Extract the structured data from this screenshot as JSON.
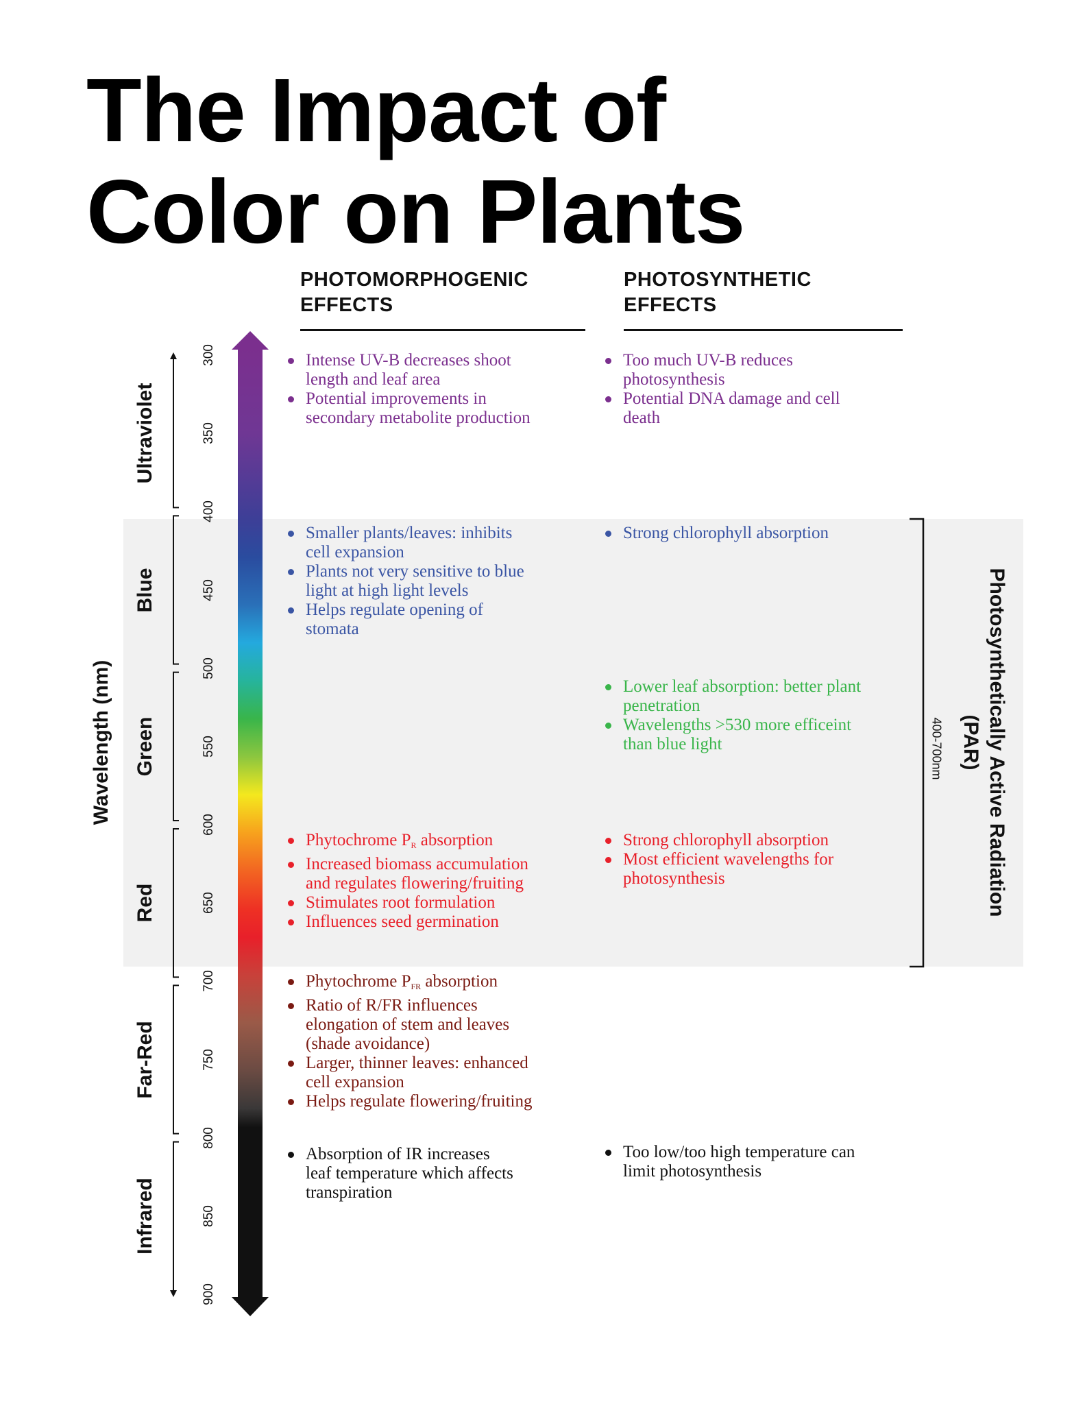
{
  "title": {
    "line1": "The Impact of",
    "line2": "Color on Plants"
  },
  "columns": {
    "photomorphogenic": {
      "line1": "PHOTOMORPHOGENIC",
      "line2": "EFFECTS"
    },
    "photosynthetic": {
      "line1": "PHOTOSYNTHETIC",
      "line2": "EFFECTS"
    }
  },
  "axis": {
    "title": "Wavelength (nm)",
    "range_nm": [
      300,
      900
    ],
    "ticks": [
      "300",
      "350",
      "400",
      "450",
      "500",
      "550",
      "600",
      "650",
      "700",
      "750",
      "800",
      "850",
      "900"
    ]
  },
  "regions": [
    {
      "label": "Ultraviolet",
      "range_nm": [
        300,
        400
      ],
      "color": "#7b2f8e"
    },
    {
      "label": "Blue",
      "range_nm": [
        400,
        500
      ],
      "color": "#3a55a4"
    },
    {
      "label": "Green",
      "range_nm": [
        500,
        600
      ],
      "color": "#39b54a"
    },
    {
      "label": "Red",
      "range_nm": [
        600,
        700
      ],
      "color": "#e8202a"
    },
    {
      "label": "Far-Red",
      "range_nm": [
        700,
        800
      ],
      "color": "#7a1a12"
    },
    {
      "label": "Infrared",
      "range_nm": [
        800,
        900
      ],
      "color": "#111111"
    }
  ],
  "par": {
    "title_line1": "Photosynthetically Active Radiation",
    "title_line2": "(PAR)",
    "range": "400-700nm"
  },
  "effects": {
    "uv_morpho": [
      [
        "Intense UV-B decreases shoot",
        "length and leaf area"
      ],
      [
        "Potential improvements in",
        "secondary metabolite production"
      ]
    ],
    "uv_synth": [
      [
        "Too much UV-B reduces",
        "photosynthesis"
      ],
      [
        "Potential DNA damage and cell",
        "death"
      ]
    ],
    "blue_morpho": [
      [
        "Smaller plants/leaves: inhibits",
        "cell expansion"
      ],
      [
        "Plants not very sensitive to blue",
        "light at high light levels"
      ],
      [
        "Helps regulate opening of",
        "stomata"
      ]
    ],
    "blue_synth": [
      [
        "Strong chlorophyll absorption"
      ]
    ],
    "green_synth": [
      [
        "Lower leaf absorption: better plant",
        "penetration"
      ],
      [
        "Wavelengths >530 more efficeint",
        "than blue light"
      ]
    ],
    "red_morpho_first": {
      "pre": "Phytochrome P",
      "sub": "R",
      "post": " absorption"
    },
    "red_morpho": [
      [
        "Increased biomass accumulation",
        "and regulates flowering/fruiting"
      ],
      [
        "Stimulates root formulation"
      ],
      [
        "Influences seed germination"
      ]
    ],
    "red_synth": [
      [
        "Strong chlorophyll absorption"
      ],
      [
        "Most efficient wavelengths for",
        "photosynthesis"
      ]
    ],
    "farred_morpho_first": {
      "pre": "Phytochrome P",
      "sub": "FR",
      "post": " absorption"
    },
    "farred_morpho": [
      [
        "Ratio of R/FR influences",
        "elongation of stem and leaves",
        "(shade avoidance)"
      ],
      [
        "Larger, thinner leaves: enhanced",
        "cell expansion"
      ],
      [
        "Helps regulate flowering/fruiting"
      ]
    ],
    "ir_morpho": [
      [
        "Absorption of IR increases",
        "leaf temperature which affects",
        "transpiration"
      ]
    ],
    "ir_synth": [
      [
        "Too low/too high temperature can",
        "limit photosynthesis"
      ]
    ]
  }
}
